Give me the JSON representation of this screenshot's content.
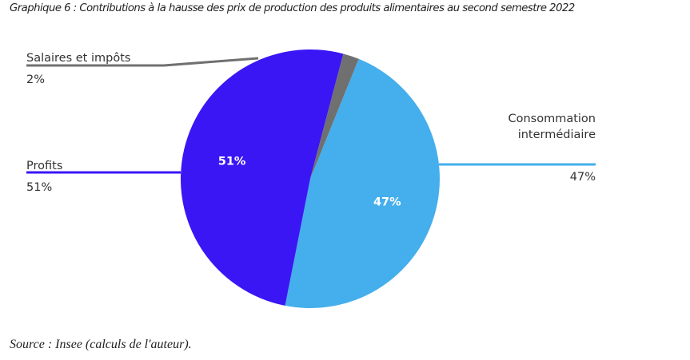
{
  "title": "Graphique 6 : Contributions à la hausse des prix de production des produits alimentaires au second semestre 2022",
  "source": "Source : Insee (calculs de l'auteur).",
  "chart_data": {
    "type": "pie",
    "slices": [
      {
        "name": "Consommation intermédiaire",
        "label_lines": [
          "Consommation",
          "intermédiaire"
        ],
        "value": 47,
        "value_label": "47%",
        "inner_label": "47%",
        "color": "#45aeec"
      },
      {
        "name": "Profits",
        "label_lines": [
          "Profits"
        ],
        "value": 51,
        "value_label": "51%",
        "inner_label": "51%",
        "color": "#3a16f5"
      },
      {
        "name": "Salaires et impôts",
        "label_lines": [
          "Salaires et impôts"
        ],
        "value": 2,
        "value_label": "2%",
        "inner_label": "",
        "color": "#707070"
      }
    ],
    "legend": "none"
  }
}
